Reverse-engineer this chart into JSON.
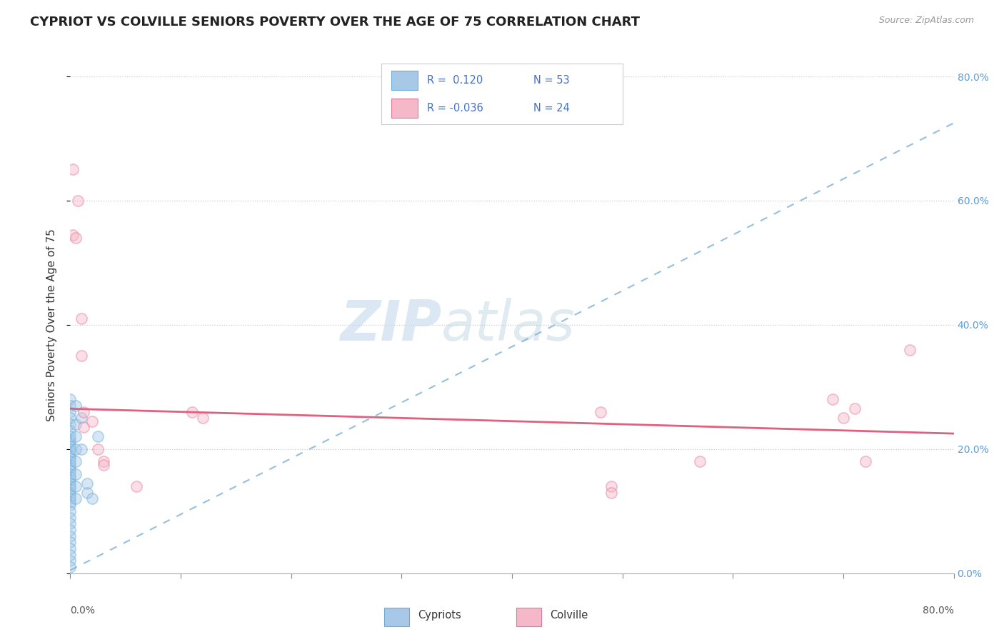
{
  "title": "CYPRIOT VS COLVILLE SENIORS POVERTY OVER THE AGE OF 75 CORRELATION CHART",
  "source_text": "Source: ZipAtlas.com",
  "ylabel": "Seniors Poverty Over the Age of 75",
  "watermark_zip": "ZIP",
  "watermark_atlas": "atlas",
  "legend_r_cypriot": "R =  0.120",
  "legend_n_cypriot": "N = 53",
  "legend_r_colville": "R = -0.036",
  "legend_n_colville": "N = 24",
  "cypriot_color": "#a8c8e8",
  "cypriot_edge_color": "#6aaed6",
  "colville_color": "#f4b8c8",
  "colville_edge_color": "#e87898",
  "cypriot_trend_color": "#7ab0d8",
  "colville_trend_color": "#e06080",
  "background_color": "#ffffff",
  "grid_color": "#cccccc",
  "right_tick_color": "#5b9bd5",
  "cypriot_scatter": [
    [
      0.0,
      0.28
    ],
    [
      0.0,
      0.27
    ],
    [
      0.0,
      0.26
    ],
    [
      0.0,
      0.25
    ],
    [
      0.0,
      0.24
    ],
    [
      0.0,
      0.23
    ],
    [
      0.0,
      0.22
    ],
    [
      0.0,
      0.215
    ],
    [
      0.0,
      0.21
    ],
    [
      0.0,
      0.205
    ],
    [
      0.0,
      0.2
    ],
    [
      0.0,
      0.195
    ],
    [
      0.0,
      0.19
    ],
    [
      0.0,
      0.185
    ],
    [
      0.0,
      0.18
    ],
    [
      0.0,
      0.175
    ],
    [
      0.0,
      0.17
    ],
    [
      0.0,
      0.165
    ],
    [
      0.0,
      0.16
    ],
    [
      0.0,
      0.155
    ],
    [
      0.0,
      0.15
    ],
    [
      0.0,
      0.145
    ],
    [
      0.0,
      0.14
    ],
    [
      0.0,
      0.135
    ],
    [
      0.0,
      0.13
    ],
    [
      0.0,
      0.125
    ],
    [
      0.0,
      0.12
    ],
    [
      0.0,
      0.115
    ],
    [
      0.0,
      0.11
    ],
    [
      0.0,
      0.1
    ],
    [
      0.0,
      0.09
    ],
    [
      0.0,
      0.08
    ],
    [
      0.0,
      0.07
    ],
    [
      0.0,
      0.06
    ],
    [
      0.0,
      0.05
    ],
    [
      0.0,
      0.04
    ],
    [
      0.0,
      0.03
    ],
    [
      0.0,
      0.02
    ],
    [
      0.0,
      0.01
    ],
    [
      0.005,
      0.27
    ],
    [
      0.005,
      0.24
    ],
    [
      0.005,
      0.22
    ],
    [
      0.005,
      0.2
    ],
    [
      0.005,
      0.18
    ],
    [
      0.005,
      0.16
    ],
    [
      0.005,
      0.14
    ],
    [
      0.005,
      0.12
    ],
    [
      0.01,
      0.25
    ],
    [
      0.01,
      0.2
    ],
    [
      0.015,
      0.145
    ],
    [
      0.015,
      0.13
    ],
    [
      0.02,
      0.12
    ],
    [
      0.025,
      0.22
    ]
  ],
  "colville_scatter": [
    [
      0.002,
      0.65
    ],
    [
      0.002,
      0.545
    ],
    [
      0.005,
      0.54
    ],
    [
      0.007,
      0.6
    ],
    [
      0.01,
      0.41
    ],
    [
      0.01,
      0.35
    ],
    [
      0.012,
      0.26
    ],
    [
      0.012,
      0.235
    ],
    [
      0.02,
      0.245
    ],
    [
      0.025,
      0.2
    ],
    [
      0.03,
      0.18
    ],
    [
      0.03,
      0.175
    ],
    [
      0.06,
      0.14
    ],
    [
      0.11,
      0.26
    ],
    [
      0.12,
      0.25
    ],
    [
      0.48,
      0.26
    ],
    [
      0.49,
      0.14
    ],
    [
      0.49,
      0.13
    ],
    [
      0.57,
      0.18
    ],
    [
      0.69,
      0.28
    ],
    [
      0.7,
      0.25
    ],
    [
      0.71,
      0.265
    ],
    [
      0.72,
      0.18
    ],
    [
      0.76,
      0.36
    ]
  ],
  "cypriot_trend_slope": 0.9,
  "cypriot_trend_intercept": 0.005,
  "colville_trend_slope": -0.05,
  "colville_trend_intercept": 0.265,
  "xmin": 0.0,
  "xmax": 0.8,
  "ymin": 0.0,
  "ymax": 0.8,
  "scatter_size": 120,
  "scatter_alpha": 0.45,
  "scatter_linewidth": 1.2
}
